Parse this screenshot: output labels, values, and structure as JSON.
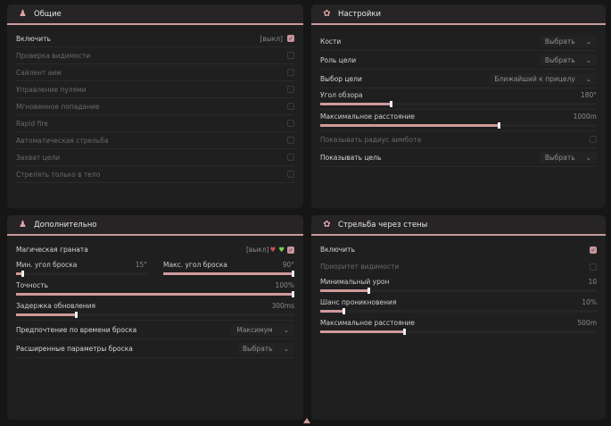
{
  "accent": "#d09a9c",
  "general": {
    "title": "Общие",
    "icon": "user-group-icon",
    "enable": {
      "label": "Включить",
      "tag": "[выкл]",
      "checked": true
    },
    "items": [
      {
        "label": "Проверка видимости",
        "checked": false
      },
      {
        "label": "Сайлент аим",
        "checked": false
      },
      {
        "label": "Управление пулями",
        "checked": false
      },
      {
        "label": "Мгновенное попадание",
        "checked": false
      },
      {
        "label": "Rapid fire",
        "checked": false
      },
      {
        "label": "Автоматическая стрельба",
        "checked": false
      },
      {
        "label": "Захват цели",
        "checked": false
      },
      {
        "label": "Стрелять только в тело",
        "checked": false
      }
    ]
  },
  "settings": {
    "title": "Настройки",
    "icon": "gear-flower-icon",
    "bones": {
      "label": "Кости",
      "value": "Выбрать"
    },
    "role": {
      "label": "Роль цели",
      "value": "Выбрать"
    },
    "target": {
      "label": "Выбор цели",
      "value": "Ближайший к прицелу"
    },
    "fov": {
      "label": "Угол обзора",
      "value": "180°",
      "fraction": 0.26
    },
    "maxdist": {
      "label": "Максимальное расстояние",
      "value": "1000m",
      "fraction": 0.65
    },
    "radius": {
      "label": "Показывать радиус аимбота",
      "checked": false
    },
    "show": {
      "label": "Показывать цель",
      "value": "Выбрать"
    }
  },
  "extra": {
    "title": "Дополнительно",
    "icon": "user-group-icon",
    "grenade": {
      "label": "Магическая граната",
      "tag": "[выкл]",
      "checked": true
    },
    "minangle": {
      "label": "Мин. угол броска",
      "value": "15°",
      "fraction": 0.06
    },
    "maxangle": {
      "label": "Макс. угол броска",
      "value": "90°",
      "fraction": 1.0
    },
    "accuracy": {
      "label": "Точность",
      "value": "100%",
      "fraction": 1.0
    },
    "delay": {
      "label": "Задержка обновления",
      "value": "300ms",
      "fraction": 0.22
    },
    "pref": {
      "label": "Предпочтение по времени броска",
      "value": "Максимум"
    },
    "adv": {
      "label": "Расширенные параметры броска",
      "value": "Выбрать"
    }
  },
  "walls": {
    "title": "Стрельба через стены",
    "icon": "gear-flower-icon",
    "enable": {
      "label": "Включить",
      "checked": true
    },
    "priority": {
      "label": "Приоритет видимости",
      "checked": false
    },
    "mindmg": {
      "label": "Минимальный урон",
      "value": "10",
      "fraction": 0.18
    },
    "pen": {
      "label": "Шанс проникновения",
      "value": "10%",
      "fraction": 0.09
    },
    "maxdist": {
      "label": "Максимальное расстояние",
      "value": "500m",
      "fraction": 0.31
    }
  }
}
